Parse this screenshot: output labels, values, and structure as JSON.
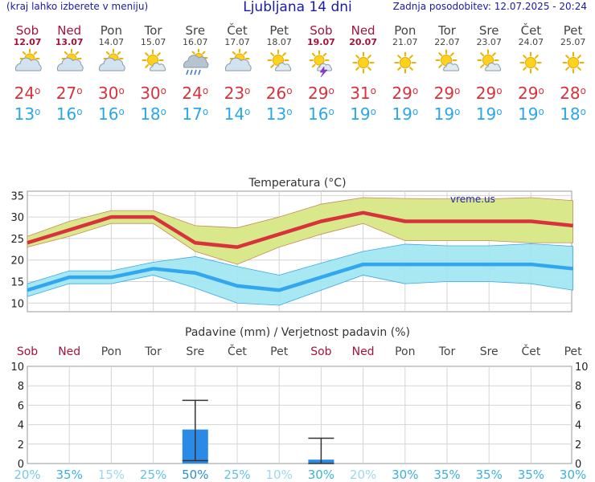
{
  "header": {
    "left_note": "(kraj lahko izberete v meniju)",
    "title": "Ljubljana 14 dni",
    "updated": "Zadnja posodobitev: 12.07.2025 - 20:24"
  },
  "degree_symbol": "o",
  "days": [
    {
      "name": "Sob",
      "date": "12.07",
      "weekend": true,
      "icon": "partly-cloudy-icon",
      "tmax": "24",
      "tmin": "13"
    },
    {
      "name": "Ned",
      "date": "13.07",
      "weekend": true,
      "icon": "partly-cloudy-icon",
      "tmax": "27",
      "tmin": "16"
    },
    {
      "name": "Pon",
      "date": "14.07",
      "weekend": false,
      "icon": "partly-cloudy-icon",
      "tmax": "30",
      "tmin": "16"
    },
    {
      "name": "Tor",
      "date": "15.07",
      "weekend": false,
      "icon": "sun-small-cloud-icon",
      "tmax": "30",
      "tmin": "18"
    },
    {
      "name": "Sre",
      "date": "16.07",
      "weekend": false,
      "icon": "sun-cloud-rain-icon",
      "tmax": "24",
      "tmin": "17"
    },
    {
      "name": "Čet",
      "date": "17.07",
      "weekend": false,
      "icon": "partly-cloudy-icon",
      "tmax": "23",
      "tmin": "14"
    },
    {
      "name": "Pet",
      "date": "18.07",
      "weekend": false,
      "icon": "sun-small-cloud-icon",
      "tmax": "26",
      "tmin": "13"
    },
    {
      "name": "Sob",
      "date": "19.07",
      "weekend": true,
      "icon": "sun-thunderstorm-icon",
      "tmax": "29",
      "tmin": "16"
    },
    {
      "name": "Ned",
      "date": "20.07",
      "weekend": true,
      "icon": "sun-icon",
      "tmax": "31",
      "tmin": "19"
    },
    {
      "name": "Pon",
      "date": "21.07",
      "weekend": false,
      "icon": "sun-icon",
      "tmax": "29",
      "tmin": "19"
    },
    {
      "name": "Tor",
      "date": "22.07",
      "weekend": false,
      "icon": "sun-small-cloud-icon",
      "tmax": "29",
      "tmin": "19"
    },
    {
      "name": "Sre",
      "date": "23.07",
      "weekend": false,
      "icon": "sun-small-cloud-icon",
      "tmax": "29",
      "tmin": "19"
    },
    {
      "name": "Čet",
      "date": "24.07",
      "weekend": false,
      "icon": "sun-icon",
      "tmax": "29",
      "tmin": "19"
    },
    {
      "name": "Pet",
      "date": "25.07",
      "weekend": false,
      "icon": "sun-icon",
      "tmax": "28",
      "tmin": "18"
    }
  ],
  "colors": {
    "max_line": "#d8323c",
    "max_band": "#d8e88a",
    "min_line": "#33a6f0",
    "min_band": "#a0e6f2",
    "precip_bar": "#2b8ae6",
    "weekend_text": "#a4133c",
    "prob_text": "#3ab1e0",
    "title_text": "#1a1aa6"
  },
  "chart_data": [
    {
      "type": "line",
      "title": "Temperatura (°C)",
      "watermark": "vreme.us",
      "x": [
        "12.07",
        "13.07",
        "14.07",
        "15.07",
        "16.07",
        "17.07",
        "18.07",
        "19.07",
        "20.07",
        "21.07",
        "22.07",
        "23.07",
        "24.07",
        "25.07"
      ],
      "ylim": [
        8,
        36
      ],
      "yticks": [
        10,
        15,
        20,
        25,
        30,
        35
      ],
      "grid": true,
      "series": [
        {
          "name": "max",
          "values": [
            24,
            27,
            30,
            30,
            24,
            23,
            26,
            29,
            31,
            29,
            29,
            29,
            29,
            28
          ],
          "band_low": [
            23,
            25.5,
            28.5,
            28.5,
            22,
            19,
            23,
            26,
            28.5,
            24.5,
            24.5,
            24.5,
            24,
            24
          ],
          "band_high": [
            25.5,
            29,
            31.5,
            31.5,
            28,
            27.5,
            30,
            33,
            34.5,
            34.3,
            34.2,
            34.2,
            34.5,
            33.8
          ]
        },
        {
          "name": "min",
          "values": [
            13,
            16,
            16,
            18,
            17,
            14,
            13,
            16,
            19,
            19,
            19,
            19,
            19,
            18
          ],
          "band_low": [
            11.5,
            14.5,
            14.5,
            16.5,
            13.5,
            10,
            9.5,
            13,
            16.5,
            14.5,
            15,
            15,
            14.5,
            13
          ],
          "band_high": [
            14.5,
            17.5,
            17.5,
            19.5,
            20.8,
            18.5,
            16.5,
            19.3,
            22,
            23.7,
            23.3,
            23.3,
            23.8,
            23.2
          ]
        }
      ]
    },
    {
      "type": "bar",
      "title": "Padavine (mm) / Verjetnost padavin (%)",
      "x": [
        "Sob",
        "Ned",
        "Pon",
        "Tor",
        "Sre",
        "Čet",
        "Pet",
        "Sob",
        "Ned",
        "Pon",
        "Tor",
        "Sre",
        "Čet",
        "Pet"
      ],
      "x_weekend": [
        true,
        true,
        false,
        false,
        false,
        false,
        false,
        true,
        true,
        false,
        false,
        false,
        false,
        false
      ],
      "ylim": [
        0,
        10
      ],
      "yticks": [
        0,
        2,
        4,
        6,
        8,
        10
      ],
      "grid": true,
      "values": [
        0,
        0,
        0,
        0,
        3.5,
        0,
        0,
        0.4,
        0,
        0,
        0,
        0,
        0,
        0
      ],
      "range_low": [
        null,
        null,
        null,
        null,
        0.3,
        null,
        null,
        0,
        null,
        null,
        null,
        null,
        null,
        null
      ],
      "range_high": [
        null,
        null,
        null,
        null,
        6.5,
        null,
        null,
        2.6,
        null,
        null,
        null,
        null,
        null,
        null
      ],
      "probability": [
        "20%",
        "35%",
        "15%",
        "25%",
        "50%",
        "25%",
        "10%",
        "30%",
        "20%",
        "30%",
        "35%",
        "35%",
        "35%",
        "30%"
      ],
      "probability_strength": [
        0.7,
        1,
        0.5,
        0.8,
        1,
        0.8,
        0.5,
        1,
        0.5,
        1,
        1,
        1,
        1,
        1
      ]
    }
  ]
}
